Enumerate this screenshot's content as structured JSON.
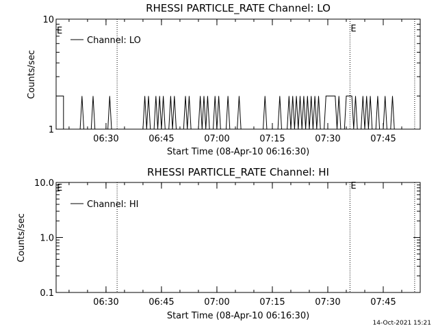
{
  "timestamp": "14-Oct-2021 15:21",
  "chart_data": [
    {
      "type": "line",
      "title": "RHESSI PARTICLE_RATE Channel: LO",
      "xlabel": "Start Time (08-Apr-10 06:16:30)",
      "ylabel": "Counts/sec",
      "y_scale": "log",
      "ylim": [
        1,
        10
      ],
      "y_ticks": [
        {
          "value": 1,
          "label": "1"
        },
        {
          "value": 10,
          "label": "10"
        }
      ],
      "xlim": [
        "06:16:30",
        "07:55:00"
      ],
      "x_ticks": [
        "06:30",
        "06:45",
        "07:00",
        "07:15",
        "07:30",
        "07:45"
      ],
      "event_lines": [
        {
          "time": "06:33:00",
          "label": ""
        },
        {
          "time": "07:36:00",
          "label": "E"
        },
        {
          "time": "07:53:30",
          "label": ""
        }
      ],
      "corner_label": "E",
      "legend": {
        "placement": "top-left",
        "entries": [
          "Channel: LO"
        ]
      },
      "series": [
        {
          "values_note": "",
          "points": [
            [
              "06:16:30",
              2
            ],
            [
              "06:18:30",
              2
            ],
            [
              "06:18:30",
              1
            ],
            [
              "06:23:00",
              1
            ],
            [
              "06:23:30",
              2
            ],
            [
              "06:24:00",
              1
            ],
            [
              "06:26:00",
              1
            ],
            [
              "06:26:30",
              2
            ],
            [
              "06:27:00",
              1
            ],
            [
              "06:30:30",
              1
            ],
            [
              "06:31:00",
              2
            ],
            [
              "06:31:30",
              1
            ],
            [
              "06:40:00",
              1
            ],
            [
              "06:40:30",
              2
            ],
            [
              "06:41:00",
              1
            ],
            [
              "06:41:30",
              2
            ],
            [
              "06:42:00",
              1
            ],
            [
              "06:43:00",
              1
            ],
            [
              "06:43:30",
              2
            ],
            [
              "06:44:00",
              1
            ],
            [
              "06:44:30",
              2
            ],
            [
              "06:45:00",
              1
            ],
            [
              "06:45:30",
              2
            ],
            [
              "06:46:00",
              1
            ],
            [
              "06:47:00",
              1
            ],
            [
              "06:47:30",
              2
            ],
            [
              "06:48:00",
              1
            ],
            [
              "06:48:30",
              2
            ],
            [
              "06:49:00",
              1
            ],
            [
              "06:51:00",
              1
            ],
            [
              "06:51:30",
              2
            ],
            [
              "06:52:00",
              1
            ],
            [
              "06:52:30",
              2
            ],
            [
              "06:53:00",
              1
            ],
            [
              "06:55:00",
              1
            ],
            [
              "06:55:30",
              2
            ],
            [
              "06:56:00",
              1
            ],
            [
              "06:56:30",
              2
            ],
            [
              "06:57:00",
              1
            ],
            [
              "06:57:30",
              2
            ],
            [
              "06:58:00",
              1
            ],
            [
              "06:59:00",
              1
            ],
            [
              "06:59:30",
              2
            ],
            [
              "07:00:00",
              1
            ],
            [
              "07:00:30",
              2
            ],
            [
              "07:01:00",
              1
            ],
            [
              "07:02:30",
              1
            ],
            [
              "07:03:00",
              2
            ],
            [
              "07:03:30",
              1
            ],
            [
              "07:05:30",
              1
            ],
            [
              "07:06:00",
              2
            ],
            [
              "07:06:30",
              1
            ],
            [
              "07:12:30",
              1
            ],
            [
              "07:13:00",
              2
            ],
            [
              "07:13:30",
              1
            ],
            [
              "07:16:30",
              1
            ],
            [
              "07:17:00",
              2
            ],
            [
              "07:17:30",
              1
            ],
            [
              "07:19:00",
              1
            ],
            [
              "07:19:30",
              2
            ],
            [
              "07:20:00",
              1
            ],
            [
              "07:20:30",
              2
            ],
            [
              "07:21:00",
              1
            ],
            [
              "07:21:30",
              2
            ],
            [
              "07:22:00",
              1
            ],
            [
              "07:22:30",
              2
            ],
            [
              "07:23:00",
              1
            ],
            [
              "07:23:30",
              2
            ],
            [
              "07:24:00",
              1
            ],
            [
              "07:24:30",
              2
            ],
            [
              "07:25:00",
              1
            ],
            [
              "07:25:30",
              2
            ],
            [
              "07:26:00",
              1
            ],
            [
              "07:26:30",
              2
            ],
            [
              "07:27:00",
              1
            ],
            [
              "07:27:30",
              2
            ],
            [
              "07:28:00",
              1
            ],
            [
              "07:29:00",
              1
            ],
            [
              "07:29:30",
              2
            ],
            [
              "07:32:00",
              2
            ],
            [
              "07:32:30",
              1
            ],
            [
              "07:33:00",
              2
            ],
            [
              "07:33:30",
              1
            ],
            [
              "07:34:30",
              1
            ],
            [
              "07:35:00",
              2
            ],
            [
              "07:36:30",
              2
            ],
            [
              "07:37:00",
              1
            ],
            [
              "07:37:30",
              2
            ],
            [
              "07:38:00",
              1
            ],
            [
              "07:39:00",
              1
            ],
            [
              "07:39:30",
              2
            ],
            [
              "07:40:00",
              1
            ],
            [
              "07:40:30",
              2
            ],
            [
              "07:41:00",
              1
            ],
            [
              "07:41:30",
              2
            ],
            [
              "07:42:00",
              1
            ],
            [
              "07:43:00",
              1
            ],
            [
              "07:43:30",
              2
            ],
            [
              "07:44:00",
              1
            ],
            [
              "07:45:00",
              1
            ],
            [
              "07:45:30",
              2
            ],
            [
              "07:46:00",
              1
            ],
            [
              "07:47:00",
              1
            ],
            [
              "07:47:30",
              2
            ],
            [
              "07:48:00",
              1
            ]
          ]
        }
      ]
    },
    {
      "type": "line",
      "title": "RHESSI PARTICLE_RATE Channel: HI",
      "xlabel": "Start Time (08-Apr-10 06:16:30)",
      "ylabel": "Counts/sec",
      "y_scale": "log",
      "ylim": [
        0.1,
        10
      ],
      "y_ticks": [
        {
          "value": 0.1,
          "label": "0.1"
        },
        {
          "value": 1,
          "label": "1.0"
        },
        {
          "value": 10,
          "label": "10.0"
        }
      ],
      "xlim": [
        "06:16:30",
        "07:55:00"
      ],
      "x_ticks": [
        "06:30",
        "06:45",
        "07:00",
        "07:15",
        "07:30",
        "07:45"
      ],
      "event_lines": [
        {
          "time": "06:33:00",
          "label": ""
        },
        {
          "time": "07:36:00",
          "label": "E"
        },
        {
          "time": "07:53:30",
          "label": ""
        }
      ],
      "corner_label": "E",
      "legend": {
        "placement": "top-left",
        "entries": [
          "Channel: HI"
        ]
      },
      "series": [
        {
          "points": []
        }
      ]
    }
  ]
}
